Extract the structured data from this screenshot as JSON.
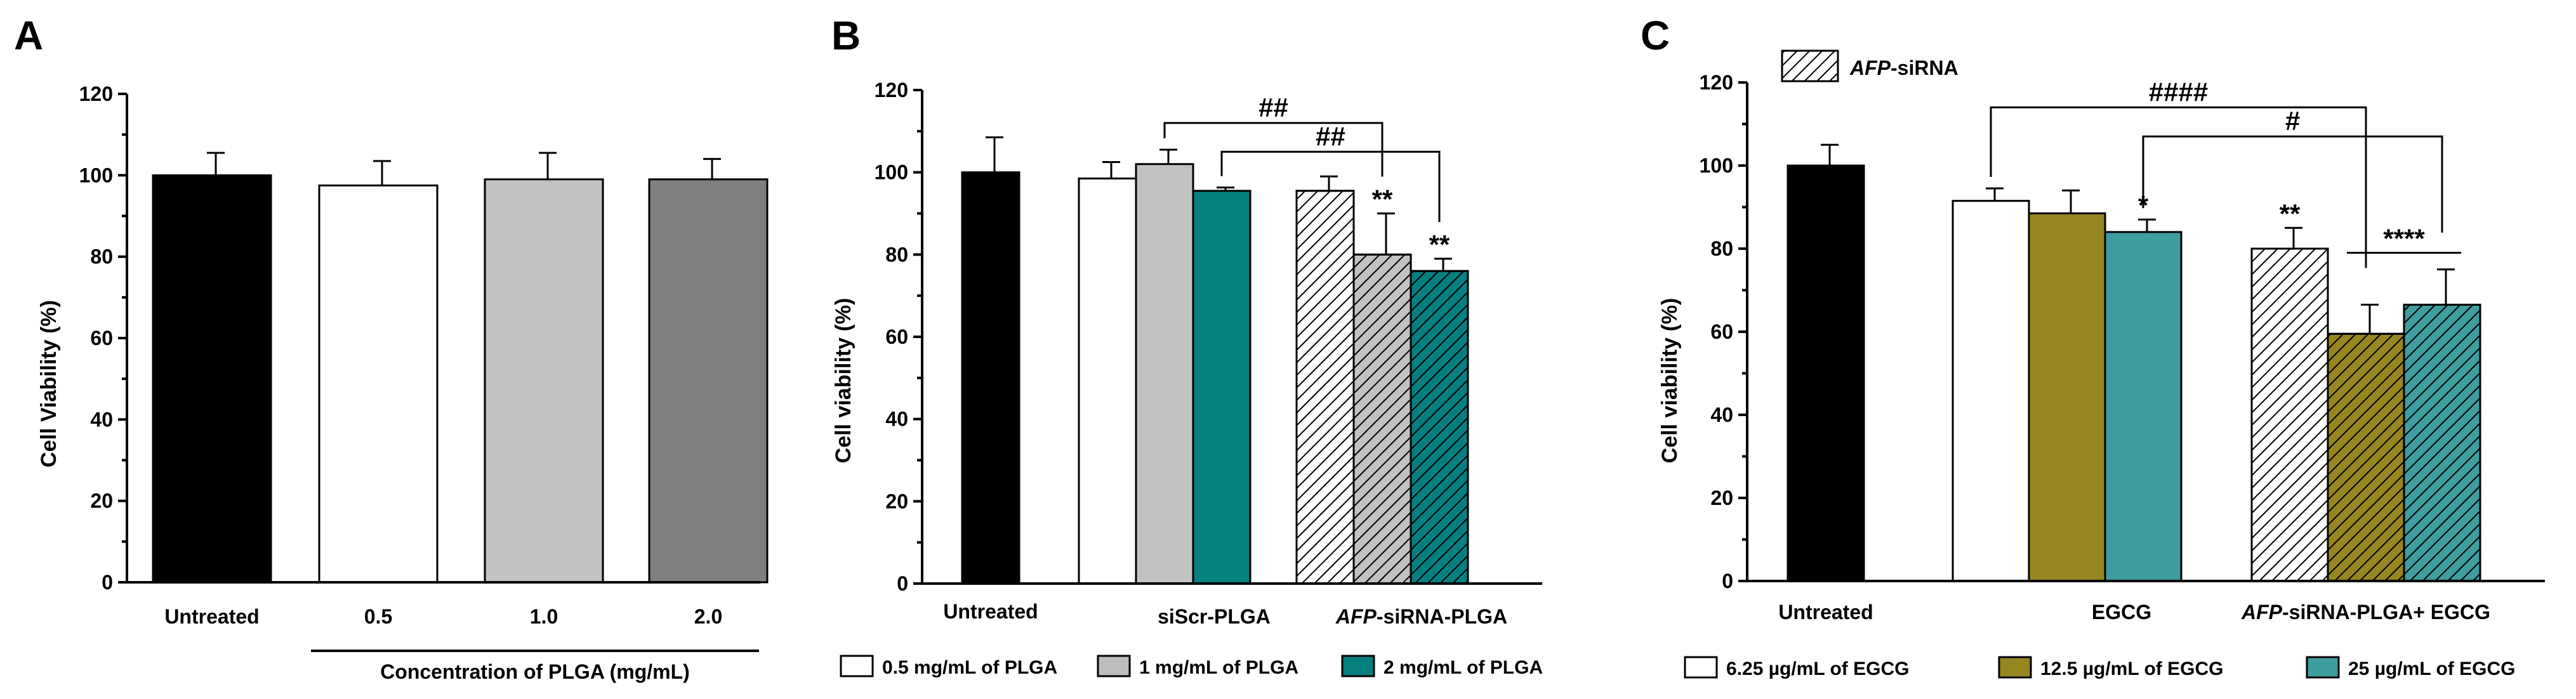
{
  "colors": {
    "black": "#000000",
    "white": "#ffffff",
    "light_gray": "#c2c2c2",
    "mid_gray": "#bdbdbd",
    "dark_gray": "#7f7f7f",
    "teal": "#057f7f",
    "olive": "#978620",
    "teal_light": "#3e9d9f"
  },
  "chart_data": [
    {
      "panel": "A",
      "type": "bar",
      "ylabel": "Cell Viability (%)",
      "ylim": [
        0,
        120
      ],
      "yticks": [
        "0",
        "20",
        "40",
        "60",
        "80",
        "100",
        "120"
      ],
      "xlabel": "Concentration of PLGA (mg/mL)",
      "bars": [
        {
          "label": "Untreated",
          "value": 100,
          "err": 5.5,
          "color": "#000000",
          "pattern": "solid"
        },
        {
          "label": "0.5",
          "value": 97.5,
          "err": 6,
          "color": "#ffffff",
          "pattern": "solid"
        },
        {
          "label": "1.0",
          "value": 99,
          "err": 6.5,
          "color": "#c2c2c2",
          "pattern": "solid"
        },
        {
          "label": "2.0",
          "value": 99,
          "err": 5,
          "color": "#7f7f7f",
          "pattern": "solid"
        }
      ]
    },
    {
      "panel": "B",
      "type": "bar",
      "ylabel": "Cell viability (%)",
      "ylim": [
        0,
        120
      ],
      "yticks": [
        "0",
        "20",
        "40",
        "60",
        "80",
        "100",
        "120"
      ],
      "groups": [
        {
          "label": "Untreated"
        },
        {
          "label": "siScr-PLGA"
        },
        {
          "label_italic": "AFP",
          "label_rest": "-siRNA-PLGA"
        }
      ],
      "bars": [
        {
          "group": 0,
          "value": 100,
          "err": 8.5,
          "color": "#000000",
          "pattern": "solid"
        },
        {
          "group": 1,
          "value": 98.5,
          "err": 4,
          "color": "#ffffff",
          "pattern": "solid"
        },
        {
          "group": 1,
          "value": 102,
          "err": 3.5,
          "color": "#c2c2c2",
          "pattern": "solid"
        },
        {
          "group": 1,
          "value": 95.5,
          "err": 0.8,
          "color": "#057f7f",
          "pattern": "solid"
        },
        {
          "group": 2,
          "value": 95.5,
          "err": 3.5,
          "color": "#ffffff",
          "pattern": "hatch"
        },
        {
          "group": 2,
          "value": 80,
          "err": 10,
          "color": "#c2c2c2",
          "pattern": "hatch",
          "sig": "**"
        },
        {
          "group": 2,
          "value": 76,
          "err": 3,
          "color": "#057f7f",
          "pattern": "hatch",
          "sig": "**"
        }
      ],
      "brackets": [
        {
          "from": 2,
          "to": 5,
          "y": 112,
          "label": "##"
        },
        {
          "from": 3,
          "to": 6,
          "y": 105,
          "label": "##"
        }
      ],
      "legend": [
        {
          "label": "0.5 mg/mL of PLGA",
          "color": "#ffffff"
        },
        {
          "label": "1 mg/mL of PLGA",
          "color": "#bdbdbd"
        },
        {
          "label": "2 mg/mL of PLGA",
          "color": "#057f7f"
        }
      ]
    },
    {
      "panel": "C",
      "type": "bar",
      "ylabel": "Cell viability (%)",
      "ylim": [
        0,
        120
      ],
      "yticks": [
        "0",
        "20",
        "40",
        "60",
        "80",
        "100",
        "120"
      ],
      "groups": [
        {
          "label": "Untreated"
        },
        {
          "label": "EGCG"
        },
        {
          "label_italic": "AFP",
          "label_rest": "-siRNA-PLGA+ EGCG"
        }
      ],
      "bars": [
        {
          "group": 0,
          "value": 100,
          "err": 5,
          "color": "#000000",
          "pattern": "solid"
        },
        {
          "group": 1,
          "value": 91.5,
          "err": 3,
          "color": "#ffffff",
          "pattern": "solid"
        },
        {
          "group": 1,
          "value": 88.5,
          "err": 5.5,
          "color": "#978620",
          "pattern": "solid"
        },
        {
          "group": 1,
          "value": 84,
          "err": 3,
          "color": "#3e9d9f",
          "pattern": "solid",
          "sig": "*"
        },
        {
          "group": 2,
          "value": 80,
          "err": 5,
          "color": "#ffffff",
          "pattern": "hatch",
          "sig": "**"
        },
        {
          "group": 2,
          "value": 59.5,
          "err": 7,
          "color": "#978620",
          "pattern": "hatch"
        },
        {
          "group": 2,
          "value": 66.5,
          "err": 8.5,
          "color": "#3e9d9f",
          "pattern": "hatch"
        }
      ],
      "brackets": [
        {
          "from": 1,
          "to": 5,
          "y": 114,
          "label": "####"
        },
        {
          "from": 3,
          "to": 6,
          "y": 107,
          "label": "#"
        }
      ],
      "sig_lines": [
        {
          "from": 5,
          "to": 6,
          "y": 79,
          "label": "****"
        }
      ],
      "hatch_legend": {
        "label_italic": "AFP",
        "label_rest": "-siRNA"
      },
      "legend": [
        {
          "label": "6.25 µg/mL of EGCG",
          "color": "#ffffff"
        },
        {
          "label": "12.5 µg/mL of EGCG",
          "color": "#978620"
        },
        {
          "label": "25 µg/mL of EGCG",
          "color": "#3e9d9f"
        }
      ]
    }
  ]
}
